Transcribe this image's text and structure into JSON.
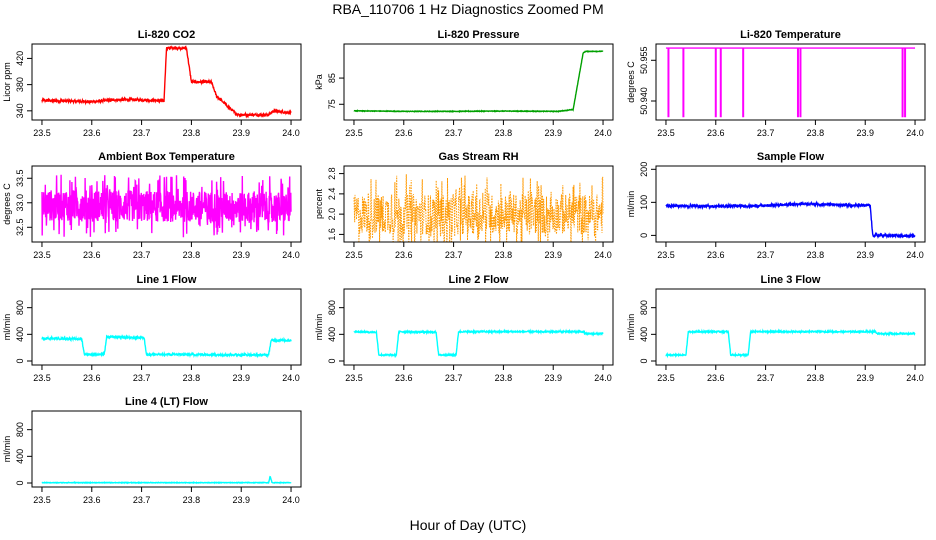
{
  "figure": {
    "title": "RBA_110706  1 Hz Diagnostics Zoomed PM",
    "xlabel": "Hour of Day (UTC)"
  },
  "chart_data": [
    {
      "type": "line",
      "title": "Li-820 CO2",
      "ylabel": "Licor ppm",
      "color": "#ff0000",
      "xlim": [
        23.48,
        24.02
      ],
      "ylim": [
        326,
        442
      ],
      "xticks": [
        "23.5",
        "23.6",
        "23.7",
        "23.8",
        "23.9",
        "24.0"
      ],
      "yticks": [
        "340",
        "380",
        "420"
      ],
      "series": [
        {
          "x": [
            23.5,
            23.55,
            23.6,
            23.65,
            23.7,
            23.745,
            23.75,
            23.79,
            23.8,
            23.84,
            23.85,
            23.89,
            23.9,
            23.955,
            23.965,
            24.0
          ],
          "y": [
            356,
            355,
            354,
            357,
            357,
            355,
            436,
            436,
            384,
            384,
            363,
            335,
            334,
            334,
            340,
            337
          ],
          "noise": 2
        }
      ]
    },
    {
      "type": "line",
      "title": "Li-820 Pressure",
      "ylabel": "kPa",
      "color": "#00a000",
      "xlim": [
        23.48,
        24.02
      ],
      "ylim": [
        69,
        98
      ],
      "xticks": [
        "23.5",
        "23.6",
        "23.7",
        "23.8",
        "23.9",
        "24.0"
      ],
      "yticks": [
        "75",
        "85"
      ],
      "series": [
        {
          "x": [
            23.5,
            23.6,
            23.7,
            23.8,
            23.91,
            23.94,
            23.96,
            23.965,
            24.0
          ],
          "y": [
            72.5,
            72.3,
            72.3,
            72.4,
            72.3,
            73.0,
            94.5,
            95.2,
            95.2
          ],
          "noise": 0.1
        }
      ]
    },
    {
      "type": "line",
      "title": "Li-820 Temperature",
      "ylabel": "degrees C",
      "color": "#ff00ff",
      "xlim": [
        23.48,
        24.02
      ],
      "ylim": [
        50.933,
        50.961
      ],
      "xticks": [
        "23.5",
        "23.6",
        "23.7",
        "23.8",
        "23.9",
        "24.0"
      ],
      "yticks": [
        "50.940",
        "50.955"
      ],
      "baseline": 50.9595,
      "spikes": [
        23.505,
        23.535,
        23.6,
        23.61,
        23.655,
        23.765,
        23.77,
        23.975,
        23.98
      ],
      "spike_low": 50.934
    },
    {
      "type": "line",
      "title": "Ambient Box Temperature",
      "ylabel": "degrees C",
      "color": "#ff00ff",
      "xlim": [
        23.48,
        24.02
      ],
      "ylim": [
        32.2,
        33.75
      ],
      "xticks": [
        "23.5",
        "23.6",
        "23.7",
        "23.8",
        "23.9",
        "24.0"
      ],
      "yticks": [
        "32.5",
        "33.0",
        "33.5"
      ],
      "series": [
        {
          "x": [
            23.5,
            24.0
          ],
          "y": [
            32.95,
            32.9
          ],
          "noise": 0.4
        }
      ]
    },
    {
      "type": "scatter",
      "title": "Gas Stream RH",
      "ylabel": "percent",
      "color": "#ff9900",
      "xlim": [
        23.48,
        24.02
      ],
      "ylim": [
        1.45,
        2.95
      ],
      "xticks": [
        "23.5",
        "23.6",
        "23.7",
        "23.8",
        "23.9",
        "24.0"
      ],
      "yticks": [
        "1.6",
        "2.0",
        "2.4",
        "2.8"
      ],
      "series": [
        {
          "x": [
            23.5,
            24.0
          ],
          "y": [
            2.0,
            2.0
          ],
          "noise": 0.5
        }
      ]
    },
    {
      "type": "line",
      "title": "Sample Flow",
      "ylabel": "ml/min",
      "color": "#0000ff",
      "xlim": [
        23.48,
        24.02
      ],
      "ylim": [
        -20,
        210
      ],
      "xticks": [
        "23.5",
        "23.6",
        "23.7",
        "23.8",
        "23.9",
        "24.0"
      ],
      "yticks": [
        "0",
        "100",
        "200"
      ],
      "series": [
        {
          "x": [
            23.5,
            23.6,
            23.7,
            23.78,
            23.85,
            23.91,
            23.915,
            24.0
          ],
          "y": [
            90,
            88,
            90,
            96,
            92,
            90,
            0,
            -2
          ],
          "noise": 4
        }
      ]
    },
    {
      "type": "line",
      "title": "Line 1 Flow",
      "ylabel": "ml/min",
      "color": "#00ffff",
      "xlim": [
        23.48,
        24.02
      ],
      "ylim": [
        -60,
        1080
      ],
      "xticks": [
        "23.5",
        "23.6",
        "23.7",
        "23.8",
        "23.9",
        "24.0"
      ],
      "yticks": [
        "0",
        "400",
        "800"
      ],
      "series": [
        {
          "x": [
            23.5,
            23.58,
            23.585,
            23.625,
            23.63,
            23.705,
            23.71,
            23.955,
            23.96,
            24.0
          ],
          "y": [
            340,
            330,
            100,
            100,
            360,
            350,
            100,
            90,
            310,
            310
          ],
          "noise": 15
        }
      ]
    },
    {
      "type": "line",
      "title": "Line 2 Flow",
      "ylabel": "ml/min",
      "color": "#00ffff",
      "xlim": [
        23.48,
        24.02
      ],
      "ylim": [
        -60,
        1080
      ],
      "xticks": [
        "23.5",
        "23.6",
        "23.7",
        "23.8",
        "23.9",
        "24.0"
      ],
      "yticks": [
        "0",
        "400",
        "800"
      ],
      "series": [
        {
          "x": [
            23.5,
            23.545,
            23.55,
            23.585,
            23.59,
            23.665,
            23.67,
            23.705,
            23.71,
            23.96,
            23.965,
            24.0
          ],
          "y": [
            440,
            430,
            90,
            90,
            440,
            430,
            90,
            90,
            440,
            440,
            410,
            410
          ],
          "noise": 10
        }
      ]
    },
    {
      "type": "line",
      "title": "Line 3 Flow",
      "ylabel": "ml/min",
      "color": "#00ffff",
      "xlim": [
        23.48,
        24.02
      ],
      "ylim": [
        -60,
        1080
      ],
      "xticks": [
        "23.5",
        "23.6",
        "23.7",
        "23.8",
        "23.9",
        "24.0"
      ],
      "yticks": [
        "0",
        "400",
        "800"
      ],
      "series": [
        {
          "x": [
            23.5,
            23.54,
            23.545,
            23.625,
            23.63,
            23.665,
            23.67,
            23.92,
            23.925,
            24.0
          ],
          "y": [
            90,
            90,
            440,
            440,
            90,
            90,
            440,
            440,
            410,
            410
          ],
          "noise": 10
        }
      ]
    },
    {
      "type": "line",
      "title": "Line 4 (LT) Flow",
      "ylabel": "ml/min",
      "color": "#00ffff",
      "xlim": [
        23.48,
        24.02
      ],
      "ylim": [
        -60,
        1080
      ],
      "xticks": [
        "23.5",
        "23.6",
        "23.7",
        "23.8",
        "23.9",
        "24.0"
      ],
      "yticks": [
        "0",
        "400",
        "800"
      ],
      "series": [
        {
          "x": [
            23.5,
            23.955,
            23.958,
            23.962,
            24.0
          ],
          "y": [
            5,
            5,
            100,
            5,
            5
          ],
          "noise": 4
        }
      ]
    }
  ]
}
